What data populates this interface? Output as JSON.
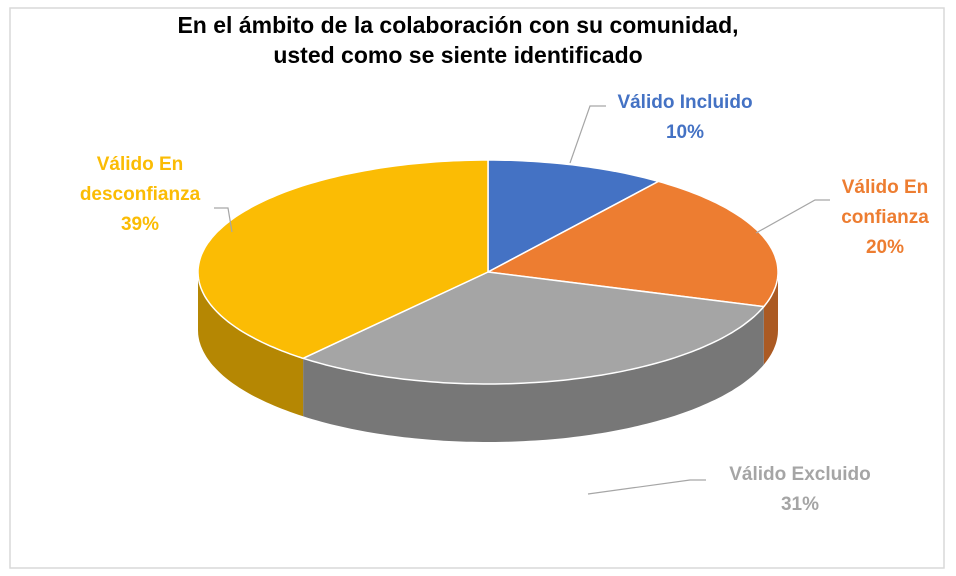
{
  "chart_data": {
    "type": "pie",
    "title": [
      "En el ámbito de la colaboración con su comunidad,",
      "usted como se siente identificado"
    ],
    "categories": [
      "Válido Incluido",
      "Válido En confianza",
      "Válido Excluido",
      "Válido En desconfianza"
    ],
    "values": [
      10,
      20,
      31,
      39
    ],
    "value_labels": [
      "10%",
      "20%",
      "31%",
      "39%"
    ],
    "colors": [
      "#4472c4",
      "#ed7d31",
      "#a5a5a5",
      "#fbbc04"
    ]
  }
}
